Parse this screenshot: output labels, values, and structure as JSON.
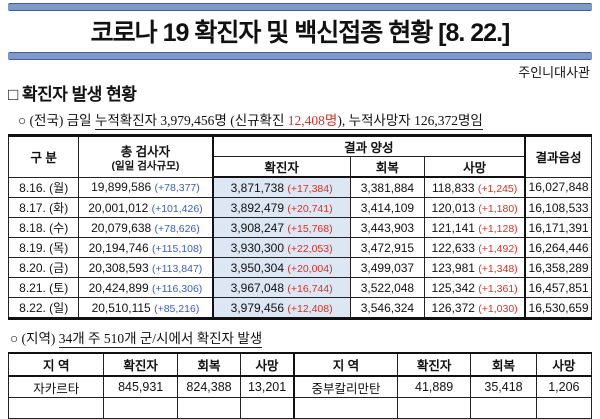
{
  "title": "코로나 19 확진자 및 백신접종 현황 [8. 22.]",
  "byline": "주인니대사관",
  "colors": {
    "accent_bar": "#7d9ac9",
    "bar_border": "#44609c",
    "red_text": "#d93025",
    "blue_delta": "#3b5fc0",
    "confirmed_column_bg": "#dce7f3"
  },
  "cases_section": {
    "heading": "□ 확진자 발생 현황",
    "summary_segments": [
      {
        "text": "○ (전국) 금일 ",
        "underline": false,
        "red": false
      },
      {
        "text": "누적확진자 3,979,456명 (신규확진 ",
        "underline": true,
        "red": false
      },
      {
        "text": "12,408명",
        "underline": true,
        "red": true
      },
      {
        "text": "), 누적사망자 ",
        "underline": true,
        "red": false
      },
      {
        "text": "126,372명임",
        "underline": true,
        "red": false
      }
    ],
    "table": {
      "headers": {
        "category": "구 분",
        "tested": "총 검사자",
        "tested_sub": "(일일 검사규모)",
        "positive_group": "결과 양성",
        "confirmed": "확진자",
        "recovered": "회복",
        "death": "사망",
        "negative": "결과음성"
      },
      "rows": [
        {
          "date": "8.16. (월)",
          "tested": "19,899,586",
          "tested_delta": "(+78,377)",
          "confirmed": "3,871,738",
          "confirmed_delta": "(+17,384)",
          "recovered": "3,381,884",
          "death": "118,833",
          "death_delta": "(+1,245)",
          "negative": "16,027,848"
        },
        {
          "date": "8.17. (화)",
          "tested": "20,001,012",
          "tested_delta": "(+101,426)",
          "confirmed": "3,892,479",
          "confirmed_delta": "(+20,741)",
          "recovered": "3,414,109",
          "death": "120,013",
          "death_delta": "(+1,180)",
          "negative": "16,108,533"
        },
        {
          "date": "8.18. (수)",
          "tested": "20,079,638",
          "tested_delta": "(+78,626)",
          "confirmed": "3,908,247",
          "confirmed_delta": "(+15,768)",
          "recovered": "3,443,903",
          "death": "121,141",
          "death_delta": "(+1,128)",
          "negative": "16,171,391"
        },
        {
          "date": "8.19. (목)",
          "tested": "20,194,746",
          "tested_delta": "(+115,108)",
          "confirmed": "3,930,300",
          "confirmed_delta": "(+22,053)",
          "recovered": "3,472,915",
          "death": "122,633",
          "death_delta": "(+1,492)",
          "negative": "16,264,446"
        },
        {
          "date": "8.20. (금)",
          "tested": "20,308,593",
          "tested_delta": "(+113,847)",
          "confirmed": "3,950,304",
          "confirmed_delta": "(+20,004)",
          "recovered": "3,499,037",
          "death": "123,981",
          "death_delta": "(+1,348)",
          "negative": "16,358,289"
        },
        {
          "date": "8.21. (토)",
          "tested": "20,424,899",
          "tested_delta": "(+116,306)",
          "confirmed": "3,967,048",
          "confirmed_delta": "(+16,744)",
          "recovered": "3,522,048",
          "death": "125,342",
          "death_delta": "(+1,361)",
          "negative": "16,457,851"
        },
        {
          "date": "8.22. (일)",
          "tested": "20,510,115",
          "tested_delta": "(+85,216)",
          "confirmed": "3,979,456",
          "confirmed_delta": "(+12,408)",
          "recovered": "3,546,324",
          "death": "126,372",
          "death_delta": "(+1,030)",
          "negative": "16,530,659"
        }
      ]
    }
  },
  "region_section": {
    "summary_segments": [
      {
        "text": "○ (지역) ",
        "underline": false,
        "red": false
      },
      {
        "text": "34개 주 510개 군/시에서 확진자 발생",
        "underline": true,
        "red": false
      }
    ],
    "table": {
      "headers": [
        "지 역",
        "확진자",
        "회복",
        "사망",
        "지 역",
        "확진자",
        "회복",
        "사망"
      ],
      "rows": [
        [
          "자카르타",
          "845,931",
          "824,388",
          "13,201",
          "중부칼리만탄",
          "41,889",
          "35,418",
          "1,206"
        ],
        [
          "",
          "",
          "",
          "",
          "",
          "",
          "",
          ""
        ]
      ]
    }
  }
}
